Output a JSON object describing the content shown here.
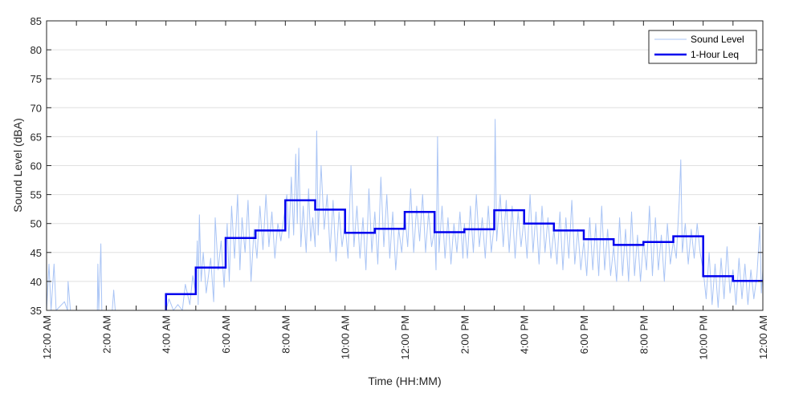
{
  "chart_data": {
    "type": "line",
    "title": "",
    "xlabel": "Time (HH:MM)",
    "ylabel": "Sound Level (dBA)",
    "xlim_hours": [
      0,
      24
    ],
    "ylim": [
      35,
      85
    ],
    "y_ticks": [
      35,
      40,
      45,
      50,
      55,
      60,
      65,
      70,
      75,
      80,
      85
    ],
    "x_ticks": [
      {
        "hour": 0,
        "label": "12:00 AM"
      },
      {
        "hour": 2,
        "label": "2:00 AM"
      },
      {
        "hour": 4,
        "label": "4:00 AM"
      },
      {
        "hour": 6,
        "label": "6:00 AM"
      },
      {
        "hour": 8,
        "label": "8:00 AM"
      },
      {
        "hour": 10,
        "label": "10:00 AM"
      },
      {
        "hour": 12,
        "label": "12:00 PM"
      },
      {
        "hour": 14,
        "label": "2:00 PM"
      },
      {
        "hour": 16,
        "label": "4:00 PM"
      },
      {
        "hour": 18,
        "label": "6:00 PM"
      },
      {
        "hour": 20,
        "label": "8:00 PM"
      },
      {
        "hour": 22,
        "label": "10:00 PM"
      },
      {
        "hour": 24,
        "label": "12:00 AM"
      }
    ],
    "grid": "horizontal",
    "legend_position": "top-right",
    "colors": {
      "sound_level": "#a9c4f5",
      "leq": "#0000ee",
      "grid": "#e0e0e0",
      "axis": "#262626"
    },
    "series": [
      {
        "name": "Sound Level",
        "style": "thin-light-blue",
        "points": [
          [
            0.0,
            35.0
          ],
          [
            0.08,
            43.0
          ],
          [
            0.15,
            35.0
          ],
          [
            0.25,
            43.0
          ],
          [
            0.32,
            35.0
          ],
          [
            0.6,
            36.5
          ],
          [
            0.7,
            35.0
          ],
          [
            0.72,
            40.0
          ],
          [
            0.8,
            35.0
          ],
          [
            1.7,
            35.0
          ],
          [
            1.72,
            43.0
          ],
          [
            1.75,
            35.0
          ],
          [
            1.82,
            46.5
          ],
          [
            1.85,
            35.0
          ],
          [
            2.2,
            35.0
          ],
          [
            2.25,
            38.5
          ],
          [
            2.3,
            35.0
          ],
          [
            4.0,
            35.0
          ],
          [
            4.1,
            37.0
          ],
          [
            4.25,
            35.0
          ],
          [
            4.4,
            36.0
          ],
          [
            4.55,
            35.0
          ],
          [
            4.65,
            39.5
          ],
          [
            4.8,
            36.0
          ],
          [
            4.9,
            41.0
          ],
          [
            5.0,
            38.0
          ],
          [
            5.05,
            47.0
          ],
          [
            5.08,
            36.0
          ],
          [
            5.12,
            51.5
          ],
          [
            5.18,
            40.0
          ],
          [
            5.25,
            45.0
          ],
          [
            5.35,
            38.0
          ],
          [
            5.5,
            44.0
          ],
          [
            5.6,
            36.5
          ],
          [
            5.65,
            51.0
          ],
          [
            5.75,
            42.0
          ],
          [
            5.85,
            47.0
          ],
          [
            5.95,
            39.0
          ],
          [
            6.05,
            50.0
          ],
          [
            6.12,
            40.0
          ],
          [
            6.2,
            53.0
          ],
          [
            6.3,
            44.0
          ],
          [
            6.4,
            55.0
          ],
          [
            6.48,
            42.0
          ],
          [
            6.55,
            51.0
          ],
          [
            6.65,
            45.0
          ],
          [
            6.75,
            54.0
          ],
          [
            6.85,
            40.0
          ],
          [
            6.95,
            49.0
          ],
          [
            7.05,
            44.0
          ],
          [
            7.15,
            53.0
          ],
          [
            7.25,
            45.5
          ],
          [
            7.35,
            55.0
          ],
          [
            7.45,
            46.0
          ],
          [
            7.55,
            52.0
          ],
          [
            7.65,
            44.0
          ],
          [
            7.75,
            50.0
          ],
          [
            7.85,
            47.0
          ],
          [
            7.95,
            51.0
          ],
          [
            8.05,
            55.0
          ],
          [
            8.12,
            47.5
          ],
          [
            8.2,
            58.0
          ],
          [
            8.28,
            48.0
          ],
          [
            8.35,
            62.0
          ],
          [
            8.4,
            50.0
          ],
          [
            8.45,
            63.0
          ],
          [
            8.52,
            46.0
          ],
          [
            8.6,
            53.0
          ],
          [
            8.7,
            45.0
          ],
          [
            8.78,
            56.0
          ],
          [
            8.85,
            47.0
          ],
          [
            8.92,
            51.0
          ],
          [
            9.0,
            46.0
          ],
          [
            9.05,
            66.0
          ],
          [
            9.1,
            48.0
          ],
          [
            9.2,
            60.0
          ],
          [
            9.3,
            49.0
          ],
          [
            9.4,
            55.0
          ],
          [
            9.5,
            45.0
          ],
          [
            9.6,
            54.0
          ],
          [
            9.7,
            43.5
          ],
          [
            9.8,
            52.0
          ],
          [
            9.9,
            46.0
          ],
          [
            10.0,
            50.0
          ],
          [
            10.1,
            44.0
          ],
          [
            10.2,
            60.0
          ],
          [
            10.3,
            46.0
          ],
          [
            10.4,
            53.0
          ],
          [
            10.5,
            44.0
          ],
          [
            10.6,
            51.0
          ],
          [
            10.7,
            42.0
          ],
          [
            10.8,
            56.0
          ],
          [
            10.9,
            45.0
          ],
          [
            11.0,
            52.0
          ],
          [
            11.1,
            43.0
          ],
          [
            11.2,
            58.0
          ],
          [
            11.3,
            46.0
          ],
          [
            11.4,
            55.0
          ],
          [
            11.5,
            44.0
          ],
          [
            11.6,
            52.0
          ],
          [
            11.7,
            42.0
          ],
          [
            11.8,
            49.0
          ],
          [
            11.9,
            45.0
          ],
          [
            12.0,
            52.0
          ],
          [
            12.1,
            46.0
          ],
          [
            12.2,
            56.0
          ],
          [
            12.3,
            45.0
          ],
          [
            12.4,
            53.0
          ],
          [
            12.5,
            47.0
          ],
          [
            12.6,
            55.0
          ],
          [
            12.7,
            45.0
          ],
          [
            12.8,
            52.0
          ],
          [
            12.9,
            46.0
          ],
          [
            13.0,
            49.0
          ],
          [
            13.05,
            42.0
          ],
          [
            13.1,
            65.0
          ],
          [
            13.15,
            45.0
          ],
          [
            13.25,
            53.0
          ],
          [
            13.35,
            44.0
          ],
          [
            13.45,
            51.0
          ],
          [
            13.55,
            43.0
          ],
          [
            13.65,
            50.0
          ],
          [
            13.75,
            45.0
          ],
          [
            13.85,
            52.0
          ],
          [
            13.95,
            44.0
          ],
          [
            14.0,
            50.0
          ],
          [
            14.1,
            44.0
          ],
          [
            14.2,
            53.0
          ],
          [
            14.3,
            45.0
          ],
          [
            14.4,
            55.0
          ],
          [
            14.5,
            46.0
          ],
          [
            14.6,
            51.0
          ],
          [
            14.7,
            44.0
          ],
          [
            14.8,
            53.0
          ],
          [
            14.9,
            45.0
          ],
          [
            15.0,
            50.0
          ],
          [
            15.03,
            68.0
          ],
          [
            15.08,
            47.0
          ],
          [
            15.2,
            55.0
          ],
          [
            15.3,
            46.0
          ],
          [
            15.4,
            54.0
          ],
          [
            15.5,
            45.0
          ],
          [
            15.6,
            53.0
          ],
          [
            15.7,
            44.0
          ],
          [
            15.8,
            52.0
          ],
          [
            15.9,
            46.0
          ],
          [
            16.0,
            51.0
          ],
          [
            16.1,
            44.0
          ],
          [
            16.2,
            55.0
          ],
          [
            16.3,
            45.0
          ],
          [
            16.4,
            52.0
          ],
          [
            16.5,
            43.0
          ],
          [
            16.6,
            53.0
          ],
          [
            16.7,
            45.0
          ],
          [
            16.8,
            51.0
          ],
          [
            16.9,
            44.0
          ],
          [
            17.0,
            49.0
          ],
          [
            17.1,
            43.0
          ],
          [
            17.2,
            52.0
          ],
          [
            17.3,
            42.0
          ],
          [
            17.4,
            51.0
          ],
          [
            17.5,
            44.0
          ],
          [
            17.6,
            54.0
          ],
          [
            17.7,
            43.0
          ],
          [
            17.8,
            49.0
          ],
          [
            17.9,
            42.0
          ],
          [
            18.0,
            47.0
          ],
          [
            18.1,
            41.0
          ],
          [
            18.2,
            51.0
          ],
          [
            18.3,
            42.0
          ],
          [
            18.4,
            50.0
          ],
          [
            18.5,
            41.0
          ],
          [
            18.6,
            53.0
          ],
          [
            18.7,
            42.0
          ],
          [
            18.8,
            49.0
          ],
          [
            18.9,
            41.0
          ],
          [
            19.0,
            46.0
          ],
          [
            19.1,
            40.0
          ],
          [
            19.2,
            51.0
          ],
          [
            19.3,
            41.0
          ],
          [
            19.4,
            49.0
          ],
          [
            19.5,
            40.0
          ],
          [
            19.6,
            52.0
          ],
          [
            19.7,
            41.0
          ],
          [
            19.8,
            48.0
          ],
          [
            19.9,
            40.0
          ],
          [
            20.0,
            47.0
          ],
          [
            20.1,
            42.0
          ],
          [
            20.2,
            53.0
          ],
          [
            20.3,
            41.0
          ],
          [
            20.4,
            51.0
          ],
          [
            20.5,
            42.0
          ],
          [
            20.6,
            48.0
          ],
          [
            20.7,
            40.0
          ],
          [
            20.8,
            50.0
          ],
          [
            20.9,
            43.0
          ],
          [
            21.0,
            47.0
          ],
          [
            21.1,
            44.0
          ],
          [
            21.2,
            54.0
          ],
          [
            21.25,
            61.0
          ],
          [
            21.3,
            45.0
          ],
          [
            21.4,
            50.0
          ],
          [
            21.5,
            43.0
          ],
          [
            21.6,
            49.0
          ],
          [
            21.7,
            44.0
          ],
          [
            21.8,
            50.0
          ],
          [
            21.9,
            45.0
          ],
          [
            22.0,
            42.0
          ],
          [
            22.1,
            37.0
          ],
          [
            22.2,
            45.0
          ],
          [
            22.3,
            36.0
          ],
          [
            22.4,
            43.0
          ],
          [
            22.5,
            35.5
          ],
          [
            22.6,
            44.0
          ],
          [
            22.7,
            37.0
          ],
          [
            22.8,
            46.0
          ],
          [
            22.9,
            38.0
          ],
          [
            23.0,
            42.0
          ],
          [
            23.1,
            36.0
          ],
          [
            23.2,
            44.0
          ],
          [
            23.3,
            37.0
          ],
          [
            23.4,
            43.0
          ],
          [
            23.5,
            36.0
          ],
          [
            23.6,
            42.0
          ],
          [
            23.7,
            37.0
          ],
          [
            23.8,
            41.0
          ],
          [
            23.9,
            49.5
          ],
          [
            23.95,
            38.0
          ],
          [
            24.0,
            42.0
          ]
        ]
      },
      {
        "name": "1-Hour Leq",
        "style": "thick-blue-step",
        "hour_start": 4,
        "values": [
          37.8,
          42.4,
          47.5,
          48.8,
          54.0,
          52.4,
          48.4,
          49.1,
          52.0,
          48.5,
          49.0,
          52.3,
          50.0,
          48.8,
          47.3,
          46.3,
          46.8,
          47.8,
          40.9,
          40.1
        ]
      }
    ]
  }
}
